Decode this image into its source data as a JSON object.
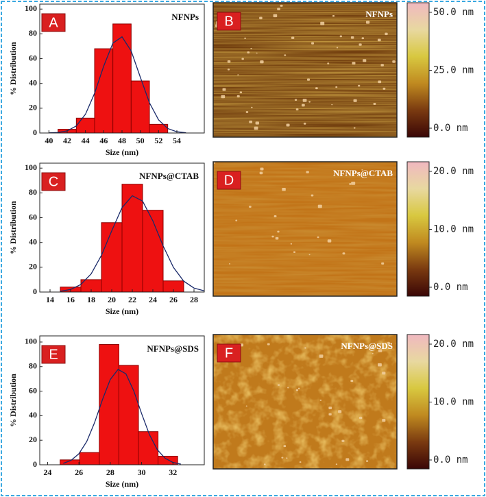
{
  "chart_data": [
    {
      "type": "histogram",
      "panel": "A",
      "title": "NFNPs",
      "xlabel": "Size (nm)",
      "ylabel": "% Distribution",
      "color": "#ee1111",
      "bins": [
        41,
        43,
        45,
        47,
        49,
        51,
        53
      ],
      "values": [
        3,
        12,
        68,
        88,
        42,
        7
      ],
      "fit": {
        "x": [
          40,
          41,
          42,
          43,
          44,
          45,
          46,
          47,
          48,
          49,
          50,
          51,
          52,
          53,
          54,
          55
        ],
        "values": [
          0.1,
          0.4,
          1.7,
          5.7,
          15.1,
          32.1,
          54.0,
          72.5,
          77.6,
          66.2,
          45.1,
          24.4,
          10.6,
          3.6,
          1.0,
          0.2
        ]
      },
      "xlim": [
        39,
        57
      ],
      "xticks": [
        40,
        42,
        44,
        46,
        48,
        50,
        52,
        54
      ],
      "ylim": [
        0,
        104
      ],
      "yticks": [
        0,
        20,
        40,
        60,
        80,
        100
      ]
    },
    {
      "type": "histogram",
      "panel": "C",
      "title": "NFNPs@CTAB",
      "xlabel": "Size (nm)",
      "ylabel": "% Distribution",
      "color": "#ee1111",
      "bins": [
        15,
        17,
        19,
        21,
        23,
        25,
        27
      ],
      "values": [
        4,
        10,
        56,
        87,
        66,
        9
      ],
      "fit": {
        "x": [
          15,
          16,
          17,
          18,
          19,
          20,
          21,
          22,
          23,
          24,
          25,
          26,
          27,
          28,
          29
        ],
        "values": [
          0.6,
          2.1,
          6.1,
          14.7,
          29.6,
          49.4,
          68.1,
          77.7,
          73.4,
          57.4,
          37.2,
          19.9,
          8.8,
          3.2,
          1.0
        ]
      },
      "xlim": [
        13,
        29
      ],
      "xticks": [
        14,
        16,
        18,
        20,
        22,
        24,
        26,
        28
      ],
      "ylim": [
        0,
        104
      ],
      "yticks": [
        0,
        20,
        40,
        60,
        80,
        100
      ]
    },
    {
      "type": "histogram",
      "panel": "E",
      "title": "NFNPs@SDS",
      "xlabel": "Size (nm)",
      "ylabel": "% Distribution",
      "color": "#ee1111",
      "bins": [
        24.8,
        26.05,
        27.3,
        28.55,
        29.8,
        31.05,
        32.3
      ],
      "values": [
        4,
        10,
        98,
        81,
        27,
        7
      ],
      "fit": {
        "x": [
          25,
          25.5,
          26,
          26.5,
          27,
          27.5,
          28,
          28.5,
          29,
          29.5,
          30,
          30.5,
          31,
          31.5,
          32,
          32.5
        ],
        "values": [
          1.2,
          3.6,
          9.0,
          19.0,
          34.4,
          53.0,
          69.5,
          77.7,
          74.1,
          60.2,
          41.7,
          24.6,
          12.3,
          5.3,
          1.9,
          0.6
        ]
      },
      "xlim": [
        23.5,
        34
      ],
      "xticks": [
        24,
        26,
        28,
        30,
        32
      ],
      "ylim": [
        0,
        105
      ],
      "yticks": [
        0,
        20,
        40,
        60,
        80,
        100
      ]
    }
  ],
  "afm_images": [
    {
      "panel": "B",
      "title": "NFNPs",
      "colorbar": {
        "lim": [
          0,
          50
        ],
        "ticks": [
          {
            "value": 50,
            "label": "50.0 nm"
          },
          {
            "value": 25,
            "label": "25.0 nm"
          },
          {
            "value": 0,
            "label": "0.0 nm"
          }
        ]
      }
    },
    {
      "panel": "D",
      "title": "NFNPs@CTAB",
      "colorbar": {
        "lim": [
          0,
          20
        ],
        "ticks": [
          {
            "value": 20,
            "label": "20.0 nm"
          },
          {
            "value": 10,
            "label": "10.0 nm"
          },
          {
            "value": 0,
            "label": "0.0 nm"
          }
        ]
      }
    },
    {
      "panel": "F",
      "title": "NFNPs@SDS",
      "colorbar": {
        "lim": [
          0,
          20
        ],
        "ticks": [
          {
            "value": 20,
            "label": "20.0 nm"
          },
          {
            "value": 10,
            "label": "10.0 nm"
          },
          {
            "value": 0,
            "label": "0.0 nm"
          }
        ]
      }
    }
  ]
}
